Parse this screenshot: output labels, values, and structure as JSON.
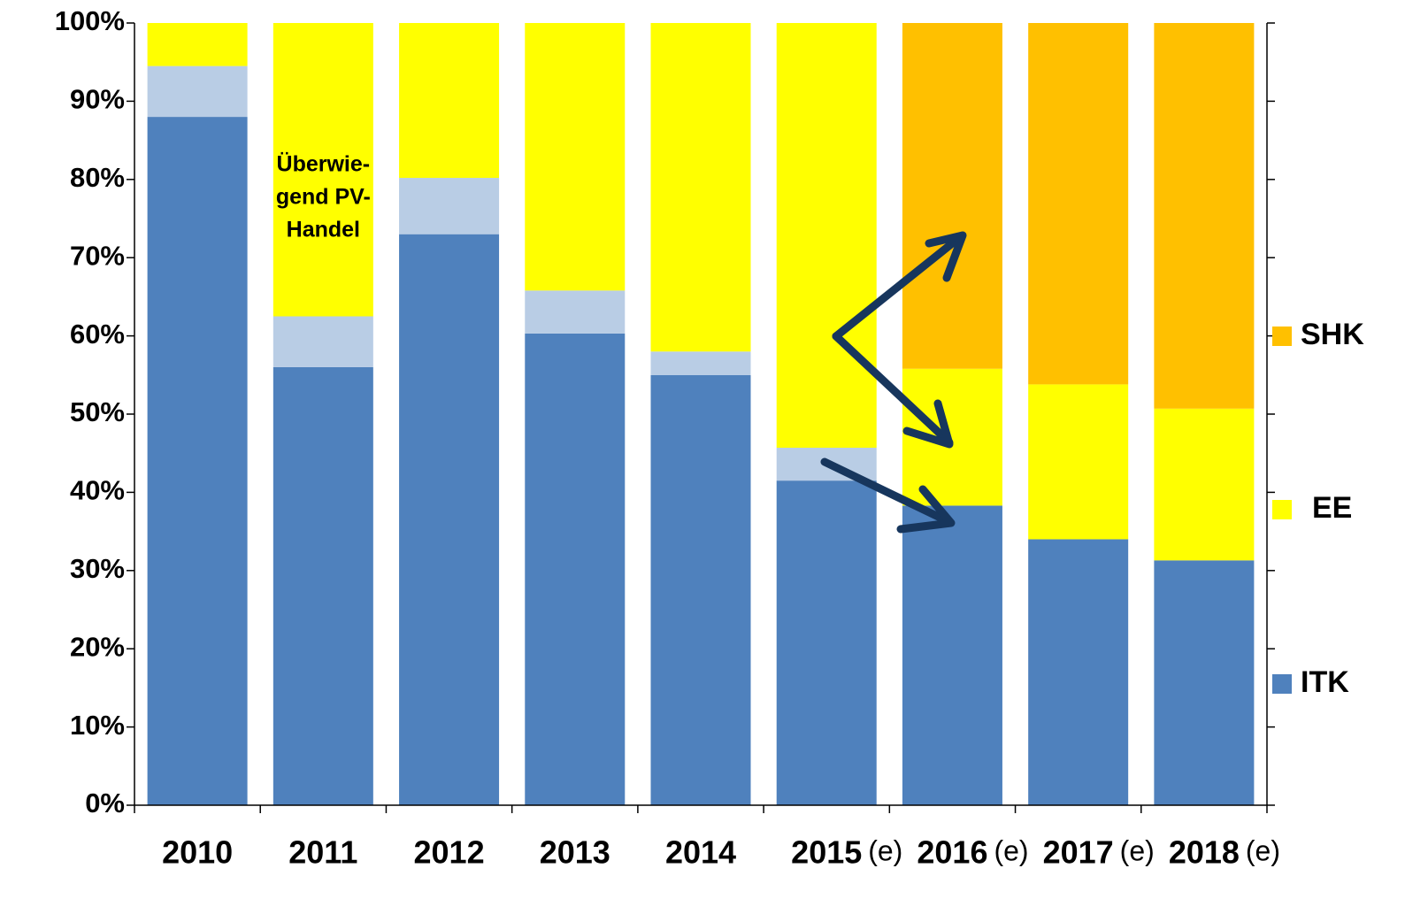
{
  "chart_data": {
    "type": "stacked_bar",
    "categories": [
      "2010",
      "2011",
      "2012",
      "2013",
      "2014",
      "2015",
      "2016",
      "2017",
      "2018"
    ],
    "category_notes": [
      null,
      null,
      null,
      null,
      null,
      "(e)",
      "(e)",
      "(e)",
      "(e)"
    ],
    "series": [
      {
        "name": "ITK",
        "color": "#4f81bd",
        "values": [
          88,
          56,
          73,
          60.3,
          55,
          41.5,
          38.3,
          34,
          31.3
        ]
      },
      {
        "color": "#b9cde5",
        "values": [
          6.5,
          6.5,
          7.2,
          5.5,
          3,
          4.2,
          null,
          null,
          null
        ]
      },
      {
        "name": "EE",
        "color": "#ffff00",
        "values": [
          5.5,
          37.5,
          19.8,
          34.2,
          42,
          54.3,
          17.5,
          19.8,
          19.4
        ]
      },
      {
        "name": "SHK",
        "color": "#ffc000",
        "values": [
          null,
          null,
          null,
          null,
          null,
          null,
          44.2,
          46.2,
          49.3
        ]
      }
    ],
    "ylim": [
      0,
      100
    ],
    "yticks": [
      {
        "value": 0,
        "label": "0%"
      },
      {
        "value": 10,
        "label": "10%"
      },
      {
        "value": 20,
        "label": "20%"
      },
      {
        "value": 30,
        "label": "30%"
      },
      {
        "value": 40,
        "label": "40%"
      },
      {
        "value": 50,
        "label": "50%"
      },
      {
        "value": 60,
        "label": "60%"
      },
      {
        "value": 70,
        "label": "70%"
      },
      {
        "value": 80,
        "label": "80%"
      },
      {
        "value": 90,
        "label": "90%"
      },
      {
        "value": 100,
        "label": "100%"
      }
    ],
    "annotation": [
      "Überwie-",
      "gend PV-",
      "Handel"
    ],
    "legend": "right"
  }
}
